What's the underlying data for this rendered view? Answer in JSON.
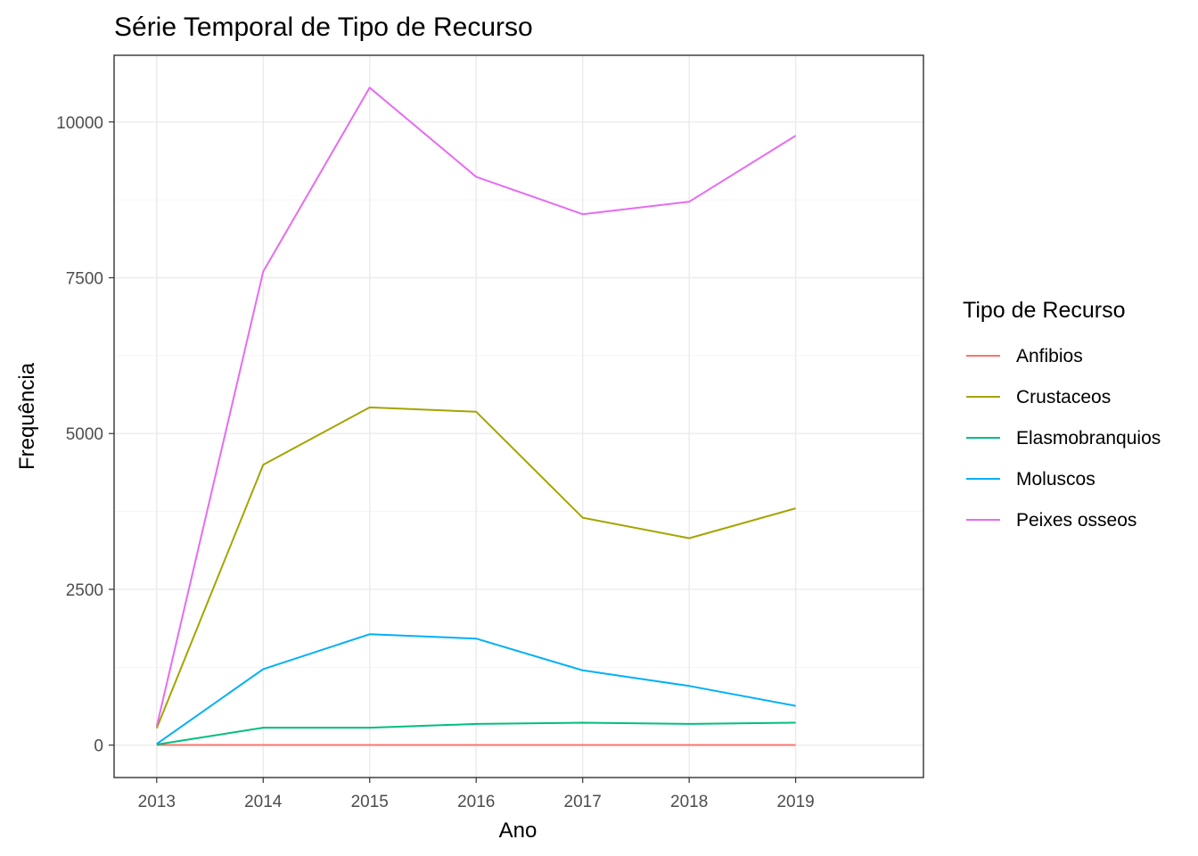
{
  "chart_data": {
    "type": "line",
    "title": "Série Temporal de Tipo de Recurso",
    "xlabel": "Ano",
    "ylabel": "Frequência",
    "x": [
      2013,
      2014,
      2015,
      2016,
      2017,
      2018,
      2019
    ],
    "x_ticks": [
      "2013",
      "2014",
      "2015",
      "2016",
      "2017",
      "2018",
      "2019"
    ],
    "y_ticks": [
      0,
      2500,
      5000,
      7500,
      10000
    ],
    "y_tick_labels": [
      "0",
      "2500",
      "5000",
      "7500",
      "10000"
    ],
    "xlim": [
      2012.6,
      2020.2
    ],
    "ylim": [
      -520,
      11070
    ],
    "grid": true,
    "legend_title": "Tipo de Recurso",
    "legend_position": "right",
    "series": [
      {
        "name": "Anfibios",
        "color": "#F8766D",
        "values": [
          2,
          2,
          2,
          2,
          2,
          2,
          2
        ]
      },
      {
        "name": "Crustaceos",
        "color": "#A3A500",
        "values": [
          270,
          4500,
          5420,
          5350,
          3650,
          3320,
          3800
        ]
      },
      {
        "name": "Elasmobranquios",
        "color": "#00BF7D",
        "values": [
          10,
          280,
          280,
          340,
          360,
          340,
          360
        ]
      },
      {
        "name": "Moluscos",
        "color": "#00B0F6",
        "values": [
          20,
          1220,
          1780,
          1710,
          1200,
          950,
          630
        ]
      },
      {
        "name": "Peixes osseos",
        "color": "#E76BF3",
        "values": [
          300,
          7600,
          10550,
          9120,
          8520,
          8720,
          9780
        ]
      }
    ]
  }
}
